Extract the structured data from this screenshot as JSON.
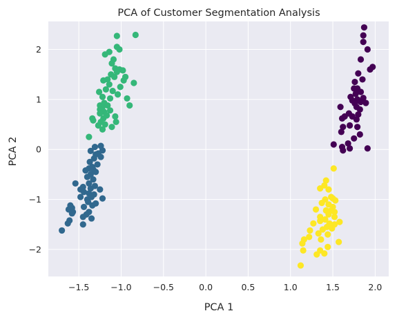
{
  "chart_data": {
    "type": "scatter",
    "title": "PCA of Customer Segmentation Analysis",
    "xlabel": "PCA 1",
    "ylabel": "PCA 2",
    "xlim": [
      -1.86,
      2.16
    ],
    "ylim": [
      -2.54,
      2.56
    ],
    "xticks": [
      -1.5,
      -1.0,
      -0.5,
      0.0,
      0.5,
      1.0,
      1.5,
      2.0
    ],
    "xtick_labels": [
      "−1.5",
      "−1.0",
      "−0.5",
      "0.0",
      "0.5",
      "1.0",
      "1.5",
      "2.0"
    ],
    "yticks": [
      -2,
      -1,
      0,
      1,
      2
    ],
    "ytick_labels": [
      "−2",
      "−1",
      "0",
      "1",
      "2"
    ],
    "grid": true,
    "background": "#eaeaf2",
    "series": [
      {
        "color": "#440154",
        "points": [
          [
            1.87,
            2.44
          ],
          [
            1.86,
            2.28
          ],
          [
            1.86,
            2.15
          ],
          [
            1.91,
            2.0
          ],
          [
            1.83,
            1.8
          ],
          [
            1.97,
            1.65
          ],
          [
            1.94,
            1.6
          ],
          [
            1.8,
            1.52
          ],
          [
            1.85,
            1.4
          ],
          [
            1.76,
            1.35
          ],
          [
            1.75,
            1.22
          ],
          [
            1.79,
            1.22
          ],
          [
            1.83,
            1.15
          ],
          [
            1.77,
            1.11
          ],
          [
            1.71,
            1.05
          ],
          [
            1.86,
            1.03
          ],
          [
            1.79,
            1.0
          ],
          [
            1.73,
            0.98
          ],
          [
            1.76,
            0.92
          ],
          [
            1.83,
            0.95
          ],
          [
            1.89,
            0.93
          ],
          [
            1.78,
            0.85
          ],
          [
            1.82,
            0.8
          ],
          [
            1.59,
            0.85
          ],
          [
            1.69,
            0.72
          ],
          [
            1.73,
            0.66
          ],
          [
            1.8,
            0.7
          ],
          [
            1.64,
            0.66
          ],
          [
            1.61,
            0.62
          ],
          [
            1.78,
            0.6
          ],
          [
            1.7,
            0.48
          ],
          [
            1.62,
            0.45
          ],
          [
            1.79,
            0.45
          ],
          [
            1.6,
            0.35
          ],
          [
            1.82,
            0.3
          ],
          [
            1.75,
            0.22
          ],
          [
            1.68,
            0.12
          ],
          [
            1.51,
            0.1
          ],
          [
            1.61,
            0.05
          ],
          [
            1.7,
            0.02
          ],
          [
            1.91,
            0.02
          ],
          [
            1.62,
            -0.02
          ]
        ]
      },
      {
        "color": "#31688e",
        "points": [
          [
            -1.24,
            0.07
          ],
          [
            -1.31,
            0.05
          ],
          [
            -1.22,
            -0.02
          ],
          [
            -1.36,
            -0.03
          ],
          [
            -1.27,
            -0.08
          ],
          [
            -1.3,
            -0.1
          ],
          [
            -1.24,
            -0.15
          ],
          [
            -1.32,
            -0.18
          ],
          [
            -1.37,
            -0.25
          ],
          [
            -1.28,
            -0.3
          ],
          [
            -1.34,
            -0.35
          ],
          [
            -1.38,
            -0.38
          ],
          [
            -1.33,
            -0.4
          ],
          [
            -1.42,
            -0.42
          ],
          [
            -1.3,
            -0.45
          ],
          [
            -1.36,
            -0.5
          ],
          [
            -1.4,
            -0.55
          ],
          [
            -1.33,
            -0.6
          ],
          [
            -1.38,
            -0.68
          ],
          [
            -1.31,
            -0.73
          ],
          [
            -1.54,
            -0.68
          ],
          [
            -1.45,
            -0.75
          ],
          [
            -1.36,
            -0.78
          ],
          [
            -1.48,
            -0.8
          ],
          [
            -1.25,
            -0.8
          ],
          [
            -1.44,
            -0.85
          ],
          [
            -1.38,
            -0.88
          ],
          [
            -1.32,
            -0.9
          ],
          [
            -1.48,
            -0.95
          ],
          [
            -1.4,
            -1.0
          ],
          [
            -1.35,
            -0.95
          ],
          [
            -1.22,
            -0.98
          ],
          [
            -1.39,
            -1.05
          ],
          [
            -1.3,
            -1.08
          ],
          [
            -1.34,
            -1.12
          ],
          [
            -1.44,
            -1.15
          ],
          [
            -1.6,
            -1.12
          ],
          [
            -1.58,
            -1.17
          ],
          [
            -1.62,
            -1.2
          ],
          [
            -1.57,
            -1.25
          ],
          [
            -1.38,
            -1.25
          ],
          [
            -1.41,
            -1.3
          ],
          [
            -1.45,
            -1.35
          ],
          [
            -1.35,
            -1.38
          ],
          [
            -1.61,
            -1.42
          ],
          [
            -1.63,
            -1.48
          ],
          [
            -1.45,
            -1.5
          ],
          [
            -1.58,
            -1.28
          ],
          [
            -1.7,
            -1.62
          ]
        ]
      },
      {
        "color": "#35b779",
        "points": [
          [
            -1.05,
            2.27
          ],
          [
            -0.83,
            2.29
          ],
          [
            -1.05,
            2.05
          ],
          [
            -1.02,
            2.0
          ],
          [
            -1.14,
            1.95
          ],
          [
            -1.19,
            1.9
          ],
          [
            -1.09,
            1.8
          ],
          [
            -1.11,
            1.72
          ],
          [
            -1.07,
            1.62
          ],
          [
            -1.02,
            1.6
          ],
          [
            -0.98,
            1.58
          ],
          [
            -1.05,
            1.55
          ],
          [
            -1.12,
            1.5
          ],
          [
            -1.08,
            1.45
          ],
          [
            -1.16,
            1.4
          ],
          [
            -1.21,
            1.38
          ],
          [
            -0.95,
            1.45
          ],
          [
            -0.97,
            1.38
          ],
          [
            -0.85,
            1.33
          ],
          [
            -1.14,
            1.3
          ],
          [
            -1.01,
            1.25
          ],
          [
            -1.18,
            1.2
          ],
          [
            -1.1,
            1.17
          ],
          [
            -1.26,
            1.15
          ],
          [
            -1.04,
            1.1
          ],
          [
            -1.22,
            1.05
          ],
          [
            -1.13,
            1.02
          ],
          [
            -0.93,
            1.02
          ],
          [
            -1.2,
            0.93
          ],
          [
            -1.25,
            0.88
          ],
          [
            -1.16,
            0.88
          ],
          [
            -1.22,
            0.85
          ],
          [
            -0.9,
            0.88
          ],
          [
            -1.25,
            0.8
          ],
          [
            -1.13,
            0.78
          ],
          [
            -1.2,
            0.75
          ],
          [
            -1.25,
            0.72
          ],
          [
            -1.17,
            0.68
          ],
          [
            -1.07,
            0.66
          ],
          [
            -1.21,
            0.62
          ],
          [
            -1.34,
            0.62
          ],
          [
            -1.24,
            0.55
          ],
          [
            -1.33,
            0.58
          ],
          [
            -1.19,
            0.5
          ],
          [
            -1.06,
            0.55
          ],
          [
            -1.27,
            0.48
          ],
          [
            -1.11,
            0.45
          ],
          [
            -1.22,
            0.4
          ],
          [
            -1.38,
            0.25
          ]
        ]
      },
      {
        "color": "#fde725",
        "points": [
          [
            1.51,
            -0.38
          ],
          [
            1.42,
            -0.62
          ],
          [
            1.4,
            -0.72
          ],
          [
            1.35,
            -0.78
          ],
          [
            1.45,
            -0.8
          ],
          [
            1.48,
            -0.95
          ],
          [
            1.5,
            -0.98
          ],
          [
            1.41,
            -1.0
          ],
          [
            1.53,
            -1.02
          ],
          [
            1.37,
            -1.07
          ],
          [
            1.45,
            -1.1
          ],
          [
            1.5,
            -1.15
          ],
          [
            1.3,
            -1.2
          ],
          [
            1.42,
            -1.22
          ],
          [
            1.47,
            -1.23
          ],
          [
            1.52,
            -1.25
          ],
          [
            1.35,
            -1.35
          ],
          [
            1.45,
            -1.3
          ],
          [
            1.52,
            -1.35
          ],
          [
            1.41,
            -1.4
          ],
          [
            1.27,
            -1.48
          ],
          [
            1.35,
            -1.43
          ],
          [
            1.46,
            -1.48
          ],
          [
            1.52,
            -1.5
          ],
          [
            1.58,
            -1.45
          ],
          [
            1.43,
            -1.55
          ],
          [
            1.49,
            -1.58
          ],
          [
            1.38,
            -1.6
          ],
          [
            1.23,
            -1.62
          ],
          [
            1.33,
            -1.68
          ],
          [
            1.44,
            -1.7
          ],
          [
            1.22,
            -1.75
          ],
          [
            1.36,
            -1.8
          ],
          [
            1.16,
            -1.8
          ],
          [
            1.14,
            -1.88
          ],
          [
            1.57,
            -1.85
          ],
          [
            1.44,
            -1.95
          ],
          [
            1.35,
            -2.02
          ],
          [
            1.31,
            -2.1
          ],
          [
            1.4,
            -2.08
          ],
          [
            1.15,
            -2.02
          ],
          [
            1.12,
            -2.32
          ]
        ]
      }
    ]
  }
}
